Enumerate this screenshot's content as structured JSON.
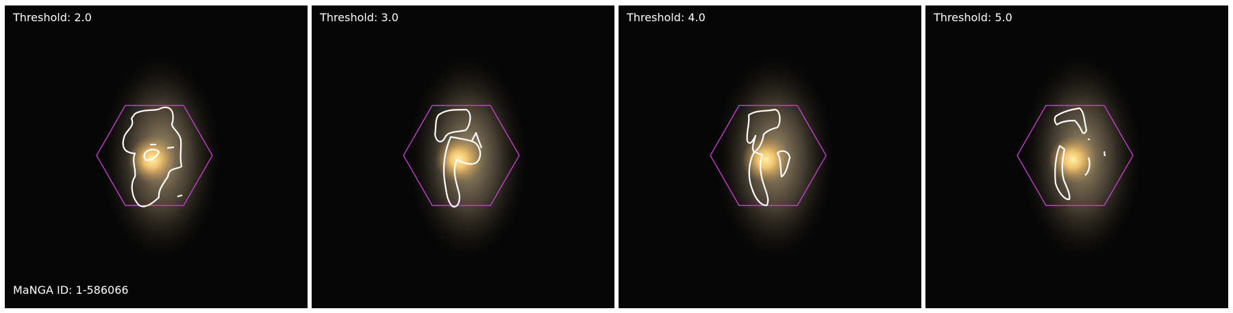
{
  "figure": {
    "manga_id_text": "MaNGA ID: 1-586066",
    "panels": [
      {
        "threshold_text": "Threshold: 2.0"
      },
      {
        "threshold_text": "Threshold: 3.0"
      },
      {
        "threshold_text": "Threshold: 4.0"
      },
      {
        "threshold_text": "Threshold: 5.0"
      }
    ]
  },
  "colors": {
    "background": "#050505",
    "hexagon": "#c23fc8",
    "contour": "#ffffff",
    "label_text": "#ffffff",
    "figure_background": "#ffffff"
  }
}
